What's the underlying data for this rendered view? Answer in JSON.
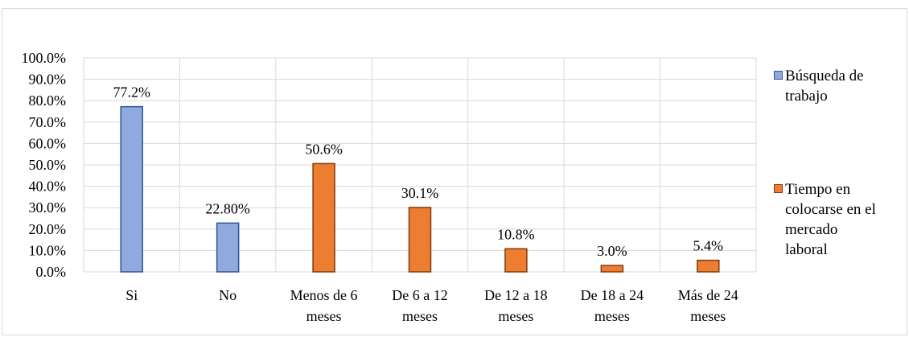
{
  "chart_data": {
    "type": "bar",
    "categories": [
      "Si",
      "No",
      "Menos de 6 meses",
      "De 6 a 12 meses",
      "De 12 a 18 meses",
      "De 18 a 24 meses",
      "Más de 24 meses"
    ],
    "category_lines": [
      [
        "Si"
      ],
      [
        "No"
      ],
      [
        "Menos de 6",
        "meses"
      ],
      [
        "De 6 a 12",
        "meses"
      ],
      [
        "De 12 a 18",
        "meses"
      ],
      [
        "De 18 a 24",
        "meses"
      ],
      [
        "Más de 24",
        "meses"
      ]
    ],
    "series": [
      {
        "name": "Búsqueda de trabajo",
        "color": "#8faadc",
        "border": "#2f5597",
        "values": [
          77.2,
          22.8,
          null,
          null,
          null,
          null,
          null
        ],
        "labels": [
          "77.2%",
          "22.80%",
          "",
          "",
          "",
          "",
          ""
        ]
      },
      {
        "name": "Tiempo en colocarse en el mercado laboral",
        "color": "#ed7d31",
        "border": "#843c0c",
        "values": [
          null,
          null,
          50.6,
          30.1,
          10.8,
          3.0,
          5.4
        ],
        "labels": [
          "",
          "",
          "50.6%",
          "30.1%",
          "10.8%",
          "3.0%",
          "5.4%"
        ]
      }
    ],
    "ylim": [
      0,
      100
    ],
    "yticks": [
      "0.0%",
      "10.0%",
      "20.0%",
      "30.0%",
      "40.0%",
      "50.0%",
      "60.0%",
      "70.0%",
      "80.0%",
      "90.0%",
      "100.0%"
    ],
    "grid": true,
    "legend_position": "right"
  },
  "legend": {
    "items": [
      {
        "lines": [
          "Búsqueda de",
          "trabajo"
        ],
        "color": "#8faadc",
        "border": "#2f5597"
      },
      {
        "lines": [
          "Tiempo en",
          "colocarse en el",
          "mercado",
          "laboral"
        ],
        "color": "#ed7d31",
        "border": "#843c0c"
      }
    ]
  }
}
